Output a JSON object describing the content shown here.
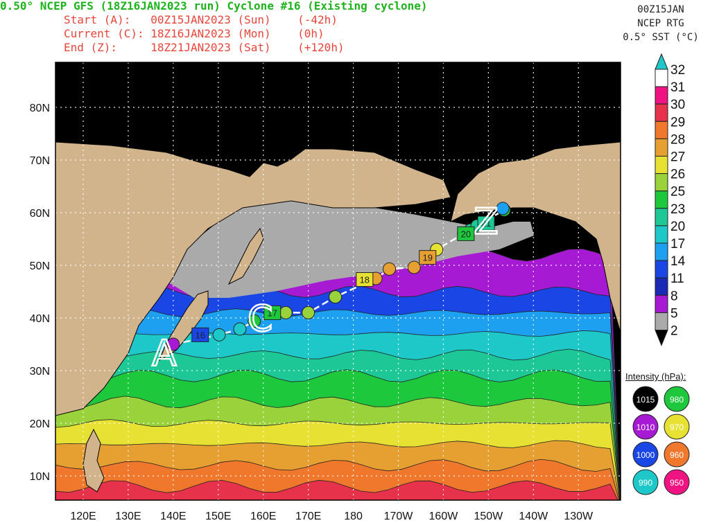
{
  "header": {
    "title": "0.50° NCEP GFS (18Z16JAN2023 run) Cyclone #16 (Existing cyclone)",
    "start": "Start (A):   00Z15JAN2023 (Sun)    (-42h)",
    "current": "Current (C): 18Z16JAN2023 (Mon)    (0h)",
    "end": "End (Z):     18Z21JAN2023 (Sat)    (+120h)",
    "right_time": "00Z15JAN",
    "right_source": "NCEP RTG",
    "right_field": "0.5° SST (°C)"
  },
  "colors": {
    "ocean_bands": [
      "#a51ad2",
      "#1a46e6",
      "#1ea0f0",
      "#1ec8c8",
      "#1ec896",
      "#1ec83c",
      "#9ad23c",
      "#e6e132",
      "#e6a032",
      "#f0782d",
      "#e6324b",
      "#f01482"
    ],
    "land": "#d2b48c",
    "ice_black": "#000000",
    "cold_gray": "#aaaaaa",
    "track": "#ffffff"
  },
  "map": {
    "lat_labels": [
      "80N",
      "70N",
      "60N",
      "50N",
      "40N",
      "30N",
      "20N",
      "10N"
    ],
    "lon_labels": [
      "120E",
      "130E",
      "140E",
      "150E",
      "160E",
      "170E",
      "180",
      "170W",
      "160W",
      "150W",
      "140W",
      "130W"
    ],
    "markers": {
      "start": "A",
      "current": "C",
      "end": "Z"
    },
    "day_labels": [
      "16",
      "17",
      "18",
      "19",
      "20",
      "21"
    ]
  },
  "track_points": [
    {
      "lon": 140.0,
      "lat": 35.0,
      "color": "#a51ad2"
    },
    {
      "lon": 150.2,
      "lat": 36.8,
      "color": "#1ec8c8"
    },
    {
      "lon": 154.8,
      "lat": 37.9,
      "color": "#1ec8c8"
    },
    {
      "lon": 158.0,
      "lat": 39.4,
      "color": "#1ec83c"
    },
    {
      "lon": 165.0,
      "lat": 41.0,
      "color": "#9ad23c"
    },
    {
      "lon": 170.0,
      "lat": 41.0,
      "color": "#9ad23c"
    },
    {
      "lon": 176.0,
      "lat": 44.0,
      "color": "#9ad23c"
    },
    {
      "lon": -175.0,
      "lat": 47.5,
      "color": "#e6a032"
    },
    {
      "lon": -172.0,
      "lat": 49.3,
      "color": "#e6a032"
    },
    {
      "lon": -166.5,
      "lat": 49.6,
      "color": "#e6a032"
    },
    {
      "lon": -161.5,
      "lat": 53.0,
      "color": "#e6e132"
    },
    {
      "lon": -155.5,
      "lat": 56.0,
      "color": "#1ec896"
    },
    {
      "lon": -154.0,
      "lat": 56.7,
      "color": "#1ec896"
    },
    {
      "lon": -152.5,
      "lat": 57.5,
      "color": "#1ec896"
    },
    {
      "lon": -146.5,
      "lat": 60.5,
      "color": "#1ec83c"
    },
    {
      "lon": -146.8,
      "lat": 60.8,
      "color": "#1ea0f0"
    }
  ],
  "day_markers": [
    {
      "label": "16",
      "lon": 146.0,
      "lat": 36.8,
      "color": "#1a46e6"
    },
    {
      "label": "17",
      "lon": 162.0,
      "lat": 41.0,
      "color": "#1ec83c"
    },
    {
      "label": "18",
      "lon": -177.5,
      "lat": 47.3,
      "color": "#e6e132"
    },
    {
      "label": "19",
      "lon": -163.5,
      "lat": 51.5,
      "color": "#e6a032"
    },
    {
      "label": "20",
      "lon": -155.0,
      "lat": 56.0,
      "color": "#1ec83c"
    },
    {
      "label": "21",
      "lon": -150.5,
      "lat": 58.0,
      "color": "#1ec896"
    }
  ],
  "sst_colorbar": {
    "labels": [
      "32",
      "31",
      "30",
      "29",
      "28",
      "27",
      "26",
      "25",
      "23",
      "20",
      "17",
      "14",
      "11",
      "8",
      "5",
      "2"
    ],
    "colors": [
      "#ffffff",
      "#f01482",
      "#e6324b",
      "#f0782d",
      "#e6a032",
      "#e6e132",
      "#9ad23c",
      "#1ec83c",
      "#1ec896",
      "#1ec8c8",
      "#1ea0f0",
      "#1a46e6",
      "#1a2ab4",
      "#a51ad2",
      "#aaaaaa"
    ],
    "top_arrow_color": "#1ec8c8",
    "bottom_arrow_color": "#000000"
  },
  "intensity_legend": {
    "title": "Intensity (hPa):",
    "items": [
      {
        "label": "1015",
        "color": "#000000",
        "text": "#ffffff"
      },
      {
        "label": "980",
        "color": "#1ec83c",
        "text": "#ffffff"
      },
      {
        "label": "1010",
        "color": "#a51ad2",
        "text": "#ffffff"
      },
      {
        "label": "970",
        "color": "#e6e132",
        "text": "#ffffff"
      },
      {
        "label": "1000",
        "color": "#1a46e6",
        "text": "#ffffff"
      },
      {
        "label": "960",
        "color": "#f0782d",
        "text": "#ffffff"
      },
      {
        "label": "990",
        "color": "#1ec8c8",
        "text": "#ffffff"
      },
      {
        "label": "950",
        "color": "#f01482",
        "text": "#ffffff"
      }
    ]
  }
}
